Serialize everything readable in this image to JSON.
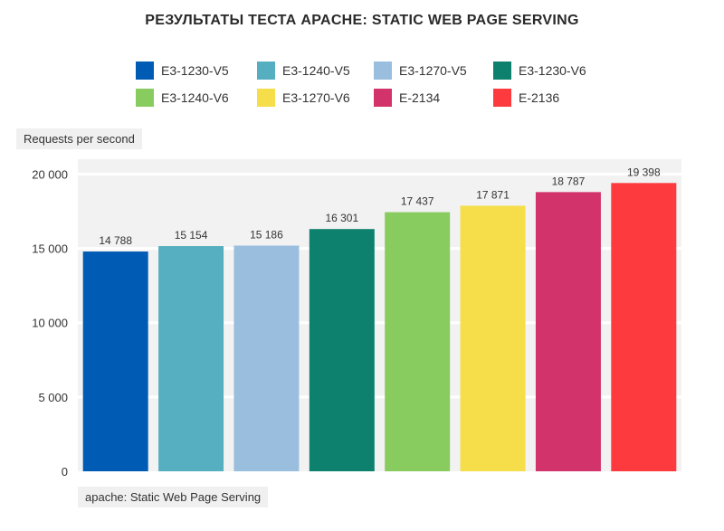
{
  "chart_data": {
    "type": "bar",
    "title": "РЕЗУЛЬТАТЫ ТЕСТА APACHE: STATIC WEB PAGE SERVING",
    "xlabel": "apache: Static Web Page Serving",
    "ylabel": "Requests per second",
    "ylim": [
      0,
      21000
    ],
    "yticks": [
      {
        "value": 0,
        "label": "0"
      },
      {
        "value": 5000,
        "label": "5 000"
      },
      {
        "value": 10000,
        "label": "10 000"
      },
      {
        "value": 15000,
        "label": "15 000"
      },
      {
        "value": 20000,
        "label": "20 000"
      }
    ],
    "grid": true,
    "legend_position": "top",
    "series": [
      {
        "name": "E3-1230-V5",
        "value": 14788,
        "label": "14 788",
        "color": "#005bb5"
      },
      {
        "name": "E3-1240-V5",
        "value": 15154,
        "label": "15 154",
        "color": "#56afc1"
      },
      {
        "name": "E3-1270-V5",
        "value": 15186,
        "label": "15 186",
        "color": "#9abede"
      },
      {
        "name": "E3-1230-V6",
        "value": 16301,
        "label": "16 301",
        "color": "#0d816d"
      },
      {
        "name": "E3-1240-V6",
        "value": 17437,
        "label": "17 437",
        "color": "#88cc5f"
      },
      {
        "name": "E3-1270-V6",
        "value": 17871,
        "label": "17 871",
        "color": "#f6dd4a"
      },
      {
        "name": "E-2134",
        "value": 18787,
        "label": "18 787",
        "color": "#d3336b"
      },
      {
        "name": "E-2136",
        "value": 19398,
        "label": "19 398",
        "color": "#fd3a3d"
      }
    ]
  }
}
